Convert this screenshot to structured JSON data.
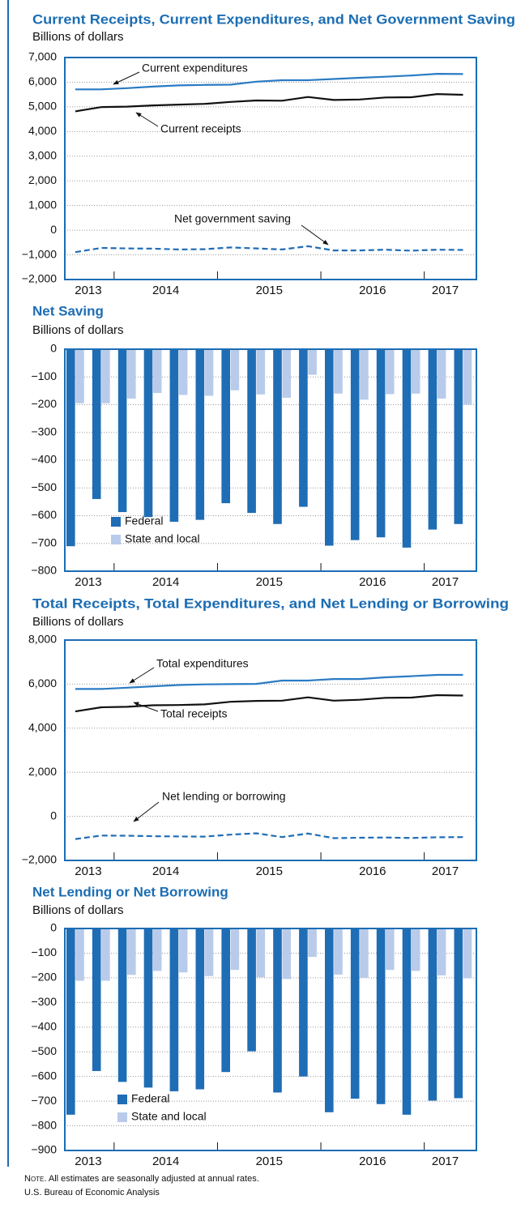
{
  "chart_data": [
    {
      "type": "line",
      "title": "Current Receipts, Current Expenditures, and Net Government Saving",
      "subtitle": "Billions of dollars",
      "xlabels": [
        "2013",
        "2014",
        "2015",
        "2016",
        "2017"
      ],
      "ylim": [
        -2000,
        7000
      ],
      "yticks": [
        {
          "value": -2000,
          "label": "−2,000"
        },
        {
          "value": -1000,
          "label": "−1,000"
        },
        0,
        {
          "value": 1000,
          "label": "1,000"
        },
        {
          "value": 2000,
          "label": "2,000"
        },
        {
          "value": 3000,
          "label": "3,000"
        },
        {
          "value": 4000,
          "label": "4,000"
        },
        {
          "value": 5000,
          "label": "5,000"
        },
        {
          "value": 6000,
          "label": "6,000"
        },
        {
          "value": 7000,
          "label": "7,000"
        }
      ],
      "grid": true,
      "series": [
        {
          "name": "Current expenditures",
          "color": "#2a7bc4",
          "line_style": "solid",
          "values": [
            5710,
            5710,
            5760,
            5820,
            5870,
            5890,
            5900,
            6020,
            6080,
            6080,
            6130,
            6180,
            6220,
            6270,
            6340,
            6330
          ]
        },
        {
          "name": "Current receipts",
          "color": "#111111",
          "line_style": "solid",
          "values": [
            4820,
            4990,
            5010,
            5060,
            5090,
            5120,
            5200,
            5260,
            5250,
            5400,
            5280,
            5300,
            5380,
            5390,
            5520,
            5490
          ]
        },
        {
          "name": "Net government saving",
          "color": "#1f6db5",
          "line_style": "dashed",
          "values": [
            -890,
            -720,
            -740,
            -750,
            -780,
            -770,
            -700,
            -740,
            -780,
            -650,
            -820,
            -820,
            -790,
            -830,
            -790,
            -800
          ]
        }
      ]
    },
    {
      "type": "bar",
      "title": "Net Saving",
      "subtitle": "Billions of dollars",
      "xlabels": [
        "2013",
        "2014",
        "2015",
        "2016",
        "2017"
      ],
      "ylim": [
        -800,
        0
      ],
      "yticks": [
        {
          "value": -800,
          "label": "−800"
        },
        {
          "value": -700,
          "label": "−700"
        },
        {
          "value": -600,
          "label": "−600"
        },
        {
          "value": -500,
          "label": "−500"
        },
        {
          "value": -400,
          "label": "−400"
        },
        {
          "value": -300,
          "label": "−300"
        },
        {
          "value": -200,
          "label": "−200"
        },
        {
          "value": -100,
          "label": "−100"
        },
        0
      ],
      "grid": true,
      "legend": "lower left",
      "series": [
        {
          "name": "Federal",
          "color": "#1f6db5",
          "values": [
            -710,
            -540,
            -587,
            -605,
            -622,
            -615,
            -555,
            -590,
            -630,
            -568,
            -708,
            -688,
            -678,
            -715,
            -650,
            -630
          ]
        },
        {
          "name": "State and local",
          "color": "#b9cbea",
          "values": [
            -195,
            -195,
            -178,
            -158,
            -165,
            -168,
            -148,
            -163,
            -175,
            -92,
            -160,
            -182,
            -162,
            -160,
            -178,
            -200
          ]
        }
      ]
    },
    {
      "type": "line",
      "title": "Total Receipts, Total Expenditures, and Net Lending or Borrowing",
      "subtitle": "Billions of dollars",
      "xlabels": [
        "2013",
        "2014",
        "2015",
        "2016",
        "2017"
      ],
      "ylim": [
        -2000,
        8000
      ],
      "yticks": [
        {
          "value": -2000,
          "label": "−2,000"
        },
        0,
        {
          "value": 2000,
          "label": "2,000"
        },
        {
          "value": 4000,
          "label": "4,000"
        },
        {
          "value": 6000,
          "label": "6,000"
        },
        {
          "value": 8000,
          "label": "8,000"
        }
      ],
      "grid": true,
      "series": [
        {
          "name": "Total expenditures",
          "color": "#2a7bc4",
          "line_style": "solid",
          "values": [
            5780,
            5780,
            5840,
            5900,
            5960,
            5990,
            6000,
            6010,
            6160,
            6160,
            6230,
            6230,
            6310,
            6360,
            6420,
            6420
          ]
        },
        {
          "name": "Total receipts",
          "color": "#111111",
          "line_style": "solid",
          "values": [
            4760,
            4950,
            4970,
            5040,
            5050,
            5080,
            5200,
            5240,
            5250,
            5400,
            5250,
            5290,
            5380,
            5390,
            5500,
            5480
          ]
        },
        {
          "name": "Net lending or borrowing",
          "color": "#1f6db5",
          "line_style": "dashed",
          "values": [
            -1030,
            -870,
            -880,
            -900,
            -910,
            -920,
            -830,
            -770,
            -940,
            -780,
            -990,
            -970,
            -960,
            -980,
            -950,
            -940
          ]
        }
      ]
    },
    {
      "type": "bar",
      "title": "Net Lending or Net Borrowing",
      "subtitle": "Billions of dollars",
      "xlabels": [
        "2013",
        "2014",
        "2015",
        "2016",
        "2017"
      ],
      "ylim": [
        -900,
        0
      ],
      "yticks": [
        {
          "value": -900,
          "label": "−900"
        },
        {
          "value": -800,
          "label": "−800"
        },
        {
          "value": -700,
          "label": "−700"
        },
        {
          "value": -600,
          "label": "−600"
        },
        {
          "value": -500,
          "label": "−500"
        },
        {
          "value": -400,
          "label": "−400"
        },
        {
          "value": -300,
          "label": "−300"
        },
        {
          "value": -200,
          "label": "−200"
        },
        {
          "value": -100,
          "label": "−100"
        },
        0
      ],
      "grid": true,
      "legend": "lower left",
      "series": [
        {
          "name": "Federal",
          "color": "#1f6db5",
          "values": [
            -755,
            -578,
            -622,
            -645,
            -660,
            -652,
            -582,
            -498,
            -665,
            -600,
            -745,
            -690,
            -712,
            -755,
            -698,
            -688
          ]
        },
        {
          "name": "State and local",
          "color": "#b9cbea",
          "values": [
            -212,
            -212,
            -188,
            -172,
            -178,
            -193,
            -168,
            -198,
            -205,
            -115,
            -187,
            -200,
            -168,
            -172,
            -190,
            -202
          ]
        }
      ]
    }
  ],
  "footer": {
    "note_label": "Note.",
    "note": "All estimates are seasonally adjusted at annual rates.",
    "source": "U.S. Bureau of Economic Analysis"
  }
}
